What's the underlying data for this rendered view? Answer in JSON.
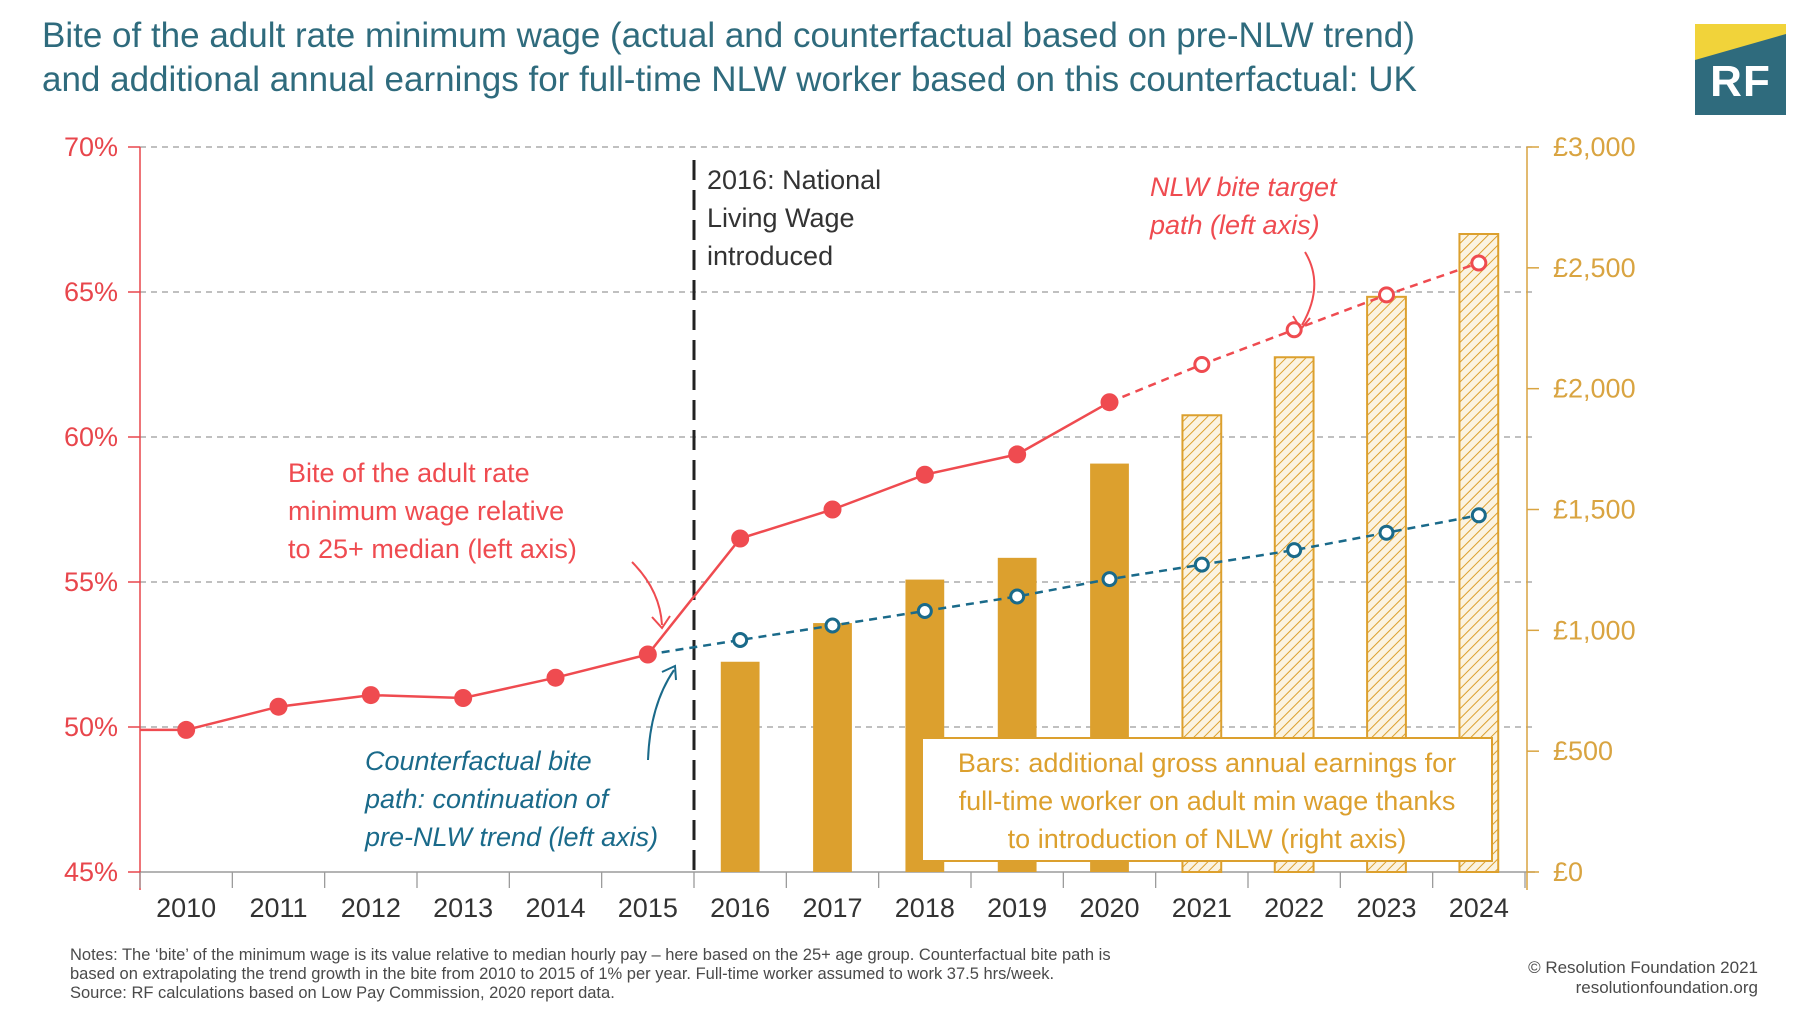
{
  "title_line1": "Bite of the adult rate minimum wage (actual and counterfactual based on pre-NLW trend)",
  "title_line2": "and additional annual earnings for full-time NLW worker based on this counterfactual: UK",
  "logo_text": "RF",
  "colors": {
    "actual": "#ef4b50",
    "counterfactual": "#1a6a8a",
    "bars": "#dca02e",
    "left_axis": "#e8464c",
    "right_axis": "#d9a441",
    "title": "#2f6b7d",
    "logo_yellow": "#f1d33a"
  },
  "annotations": {
    "intro_line1": "2016: National",
    "intro_line2": "Living Wage",
    "intro_line3": "introduced",
    "target_line1": "NLW bite target",
    "target_line2": "path (left axis)",
    "bite_line1": "Bite of the adult rate",
    "bite_line2": "minimum wage relative",
    "bite_line3": "to 25+ median (left axis)",
    "cf_line1": "Counterfactual bite",
    "cf_line2": "path: continuation of",
    "cf_line3": "pre-NLW trend (left axis)",
    "bars_line1": "Bars: additional gross annual earnings for",
    "bars_line2": "full-time worker on adult min wage thanks",
    "bars_line3": "to introduction of NLW (right axis)"
  },
  "notes_line1": "Notes: The ‘bite’ of the minimum wage is its value relative to median hourly pay – here based on the 25+ age group. Counterfactual bite path is",
  "notes_line2": "based on extrapolating the trend growth in the bite from 2010 to 2015 of 1% per year. Full-time worker assumed to work 37.5 hrs/week.",
  "notes_line3": "Source: RF calculations based on Low Pay Commission, 2020 report data.",
  "credit_line1": "© Resolution Foundation 2021",
  "credit_line2": "resolutionfoundation.org",
  "chart_data": {
    "type": "bar+line",
    "categories": [
      "2010",
      "2011",
      "2012",
      "2013",
      "2014",
      "2015",
      "2016",
      "2017",
      "2018",
      "2019",
      "2020",
      "2021",
      "2022",
      "2023",
      "2024"
    ],
    "left_axis": {
      "range": [
        45,
        70
      ],
      "ticks": [
        45,
        50,
        55,
        60,
        65,
        70
      ],
      "tick_labels": [
        "45%",
        "50%",
        "55%",
        "60%",
        "65%",
        "70%"
      ]
    },
    "right_axis": {
      "range": [
        0,
        3000
      ],
      "ticks": [
        0,
        500,
        1000,
        1500,
        2000,
        2500,
        3000
      ],
      "tick_labels": [
        "£0",
        "£500",
        "£1,000",
        "£1,500",
        "£2,000",
        "£2,500",
        "£3,000"
      ]
    },
    "grid": "horizontal dashed",
    "vertical_marker": "between 2015 and 2016",
    "series": [
      {
        "name": "Bite of the adult rate minimum wage relative to 25+ median",
        "axis": "left",
        "style": "solid line, filled markers",
        "x": [
          "2010",
          "2011",
          "2012",
          "2013",
          "2014",
          "2015",
          "2016",
          "2017",
          "2018",
          "2019",
          "2020"
        ],
        "values": [
          49.9,
          50.7,
          51.1,
          51.0,
          51.7,
          52.5,
          56.5,
          57.5,
          58.7,
          59.4,
          61.2
        ]
      },
      {
        "name": "NLW bite target path",
        "axis": "left",
        "style": "dashed line, hollow markers",
        "x": [
          "2020",
          "2021",
          "2022",
          "2023",
          "2024"
        ],
        "values": [
          61.2,
          62.5,
          63.7,
          64.9,
          66.0
        ]
      },
      {
        "name": "Counterfactual bite path",
        "axis": "left",
        "style": "dashed line, hollow markers",
        "x": [
          "2015",
          "2016",
          "2017",
          "2018",
          "2019",
          "2020",
          "2021",
          "2022",
          "2023",
          "2024"
        ],
        "values": [
          52.5,
          53.0,
          53.5,
          54.0,
          54.5,
          55.1,
          55.6,
          56.1,
          56.7,
          57.3
        ]
      },
      {
        "name": "Additional gross annual earnings",
        "axis": "right",
        "style": "bars",
        "x": [
          "2016",
          "2017",
          "2018",
          "2019",
          "2020",
          "2021",
          "2022",
          "2023",
          "2024"
        ],
        "values": [
          870,
          1030,
          1210,
          1300,
          1690,
          1890,
          2130,
          2380,
          2640
        ],
        "projected": [
          false,
          false,
          false,
          false,
          false,
          true,
          true,
          true,
          true
        ]
      }
    ]
  }
}
